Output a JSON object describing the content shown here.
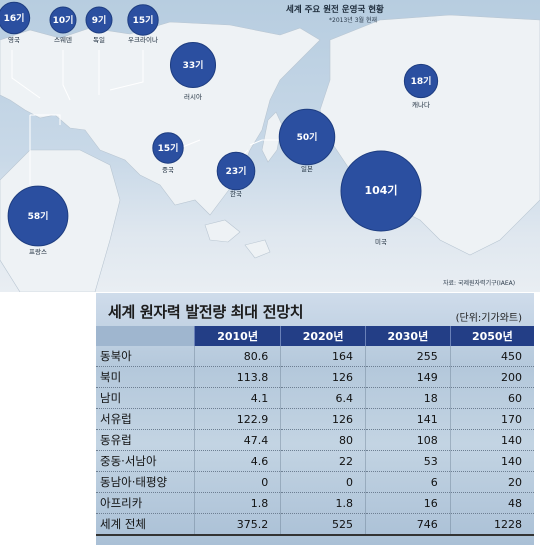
{
  "map": {
    "title": "세계 주요 원전 운영국 현황",
    "subtitle": "*2013년 3월 현재",
    "source": "자료: 국제원자력기구(IAEA)",
    "colors": {
      "bubble": "#2b4fa0",
      "bubble_dark": "#1e3d80"
    },
    "countries": [
      {
        "label": "영국",
        "value": "16기"
      },
      {
        "label": "스웨덴",
        "value": "10기"
      },
      {
        "label": "독일",
        "value": "9기"
      },
      {
        "label": "우크라이나",
        "value": "15기"
      },
      {
        "label": "러시아",
        "value": "33기"
      },
      {
        "label": "캐나다",
        "value": "18기"
      },
      {
        "label": "중국",
        "value": "15기"
      },
      {
        "label": "일본",
        "value": "50기"
      },
      {
        "label": "한국",
        "value": "23기"
      },
      {
        "label": "미국",
        "value": "104기"
      },
      {
        "label": "프랑스",
        "value": "58기"
      }
    ]
  },
  "chart_data": [
    {
      "type": "bubble",
      "title": "세계 주요 원전 운영국 현황",
      "subtitle": "*2013년 3월 현재",
      "unit": "기",
      "categories": [
        "영국",
        "스웨덴",
        "독일",
        "우크라이나",
        "러시아",
        "캐나다",
        "중국",
        "일본",
        "한국",
        "미국",
        "프랑스"
      ],
      "values": [
        16,
        10,
        9,
        15,
        33,
        18,
        15,
        50,
        23,
        104,
        58
      ]
    },
    {
      "type": "table",
      "title": "세계 원자력 발전량 최대 전망치",
      "unit": "(단위:기가와트)",
      "columns": [
        "",
        "2010년",
        "2020년",
        "2030년",
        "2050년"
      ],
      "rows": [
        [
          "동북아",
          "80.6",
          "164",
          "255",
          "450"
        ],
        [
          "북미",
          "113.8",
          "126",
          "149",
          "200"
        ],
        [
          "남미",
          "4.1",
          "6.4",
          "18",
          "60"
        ],
        [
          "서유럽",
          "122.9",
          "126",
          "141",
          "170"
        ],
        [
          "동유럽",
          "47.4",
          "80",
          "108",
          "140"
        ],
        [
          "중동·서남아",
          "4.6",
          "22",
          "53",
          "140"
        ],
        [
          "동남아·태평양",
          "0",
          "0",
          "6",
          "20"
        ],
        [
          "아프리카",
          "1.8",
          "1.8",
          "16",
          "48"
        ],
        [
          "세계 전체",
          "375.2",
          "525",
          "746",
          "1228"
        ]
      ]
    }
  ]
}
